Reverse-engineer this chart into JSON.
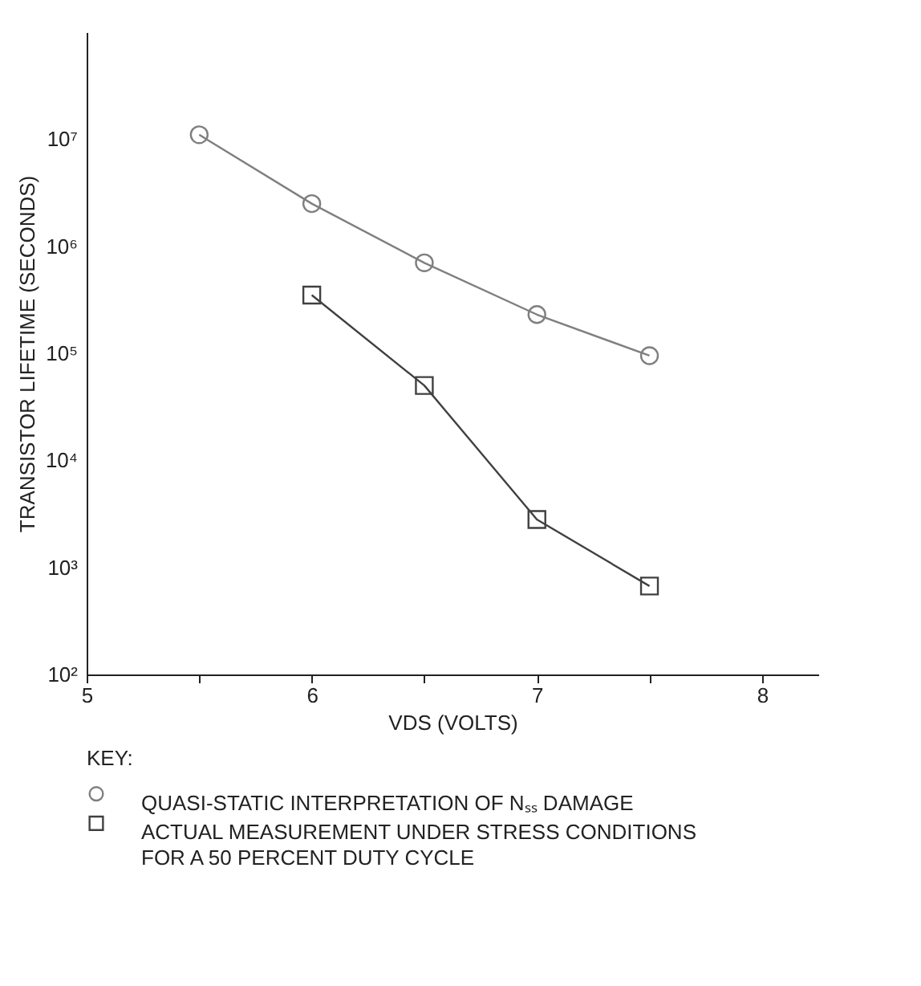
{
  "chart_data": {
    "type": "line",
    "xlabel": "VDS (VOLTS)",
    "ylabel": "TRANSISTOR LIFETIME (SECONDS)",
    "legend_title": "KEY:",
    "xlim": [
      5,
      8.25
    ],
    "xticks": [
      5,
      {
        "value": 5.5,
        "label": null
      },
      6,
      {
        "value": 6.5,
        "label": null
      },
      7,
      {
        "value": 7.5,
        "label": null
      },
      8
    ],
    "ylim": [
      100,
      100000000
    ],
    "yticks": [
      {
        "value": 100,
        "label": "10²"
      },
      {
        "value": 1000,
        "label": "10³"
      },
      {
        "value": 10000,
        "label": "10⁴"
      },
      {
        "value": 100000,
        "label": "10⁵"
      },
      {
        "value": 1000000,
        "label": "10⁶"
      },
      {
        "value": 10000000,
        "label": "10⁷"
      }
    ],
    "log": "y",
    "grid": false,
    "legend": "bottom",
    "line_style": "solid",
    "series": [
      {
        "name": "QUASI-STATIC INTERPRETATION OF Nₛₛ DAMAGE",
        "color": "#7f7f7f",
        "marker": "circle",
        "x": [
          5.5,
          6,
          6.5,
          7,
          7.5
        ],
        "values": [
          11000000,
          2500000,
          700000,
          230000,
          95000
        ]
      },
      {
        "name": "ACTUAL MEASUREMENT UNDER STRESS CONDITIONS FOR A 50 PERCENT DUTY CYCLE",
        "color": "#404040",
        "marker": "square",
        "x": [
          6,
          6.5,
          7,
          7.5
        ],
        "values": [
          350000,
          50000,
          2800,
          670
        ]
      }
    ]
  }
}
